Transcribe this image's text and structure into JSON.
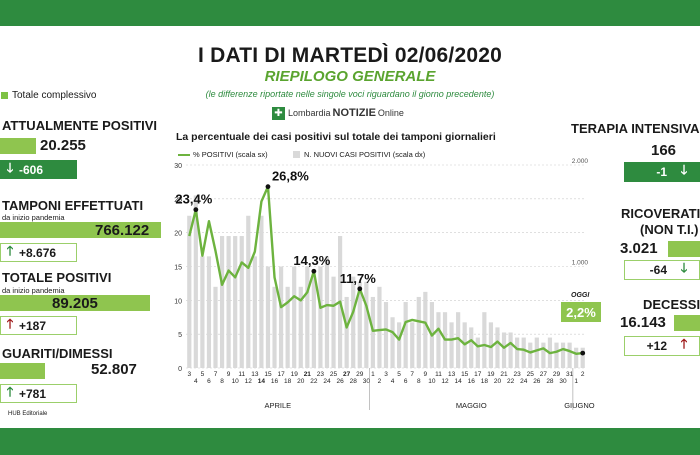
{
  "header": {
    "title": "I DATI DI MARTEDÌ 02/06/2020",
    "subtitle": "RIEPILOGO GENERALE",
    "note": "(le differenze riportate nelle singole voci riguardano il giorno precedente)",
    "logo_region": "Lombardia",
    "logo_brand": "NOTIZIE",
    "logo_suffix": "Online"
  },
  "legend_total": "Totale complessivo",
  "left": {
    "attualmente": {
      "label": "ATTUALMENTE POSITIVI",
      "value": "20.255",
      "delta": "-606"
    },
    "tamponi": {
      "label": "TAMPONI EFFETTUATI",
      "sub": "da inizio pandemia",
      "value": "766.122",
      "delta": "+8.676"
    },
    "totale": {
      "label": "TOTALE POSITIVI",
      "sub": "da inizio pandemia",
      "value": "89.205",
      "delta": "+187"
    },
    "guariti": {
      "label": "GUARITI/DIMESSI",
      "value": "52.807",
      "delta": "+781"
    }
  },
  "right": {
    "terapia": {
      "label": "TERAPIA INTENSIVA",
      "value": "166",
      "delta": "-1"
    },
    "ricoverati": {
      "label1": "RICOVERATI",
      "label2": "(NON T.I.)",
      "value": "3.021",
      "delta": "-64"
    },
    "decessi": {
      "label": "DECESSI",
      "value": "16.143",
      "delta": "+12"
    }
  },
  "footer": "HUB Editoriale",
  "colors": {
    "green_dark": "#2e8b3f",
    "green_light": "#8fc54f",
    "red": "#a01c1c",
    "bar": "#d9d9d9"
  },
  "oggi": {
    "label": "OGGI",
    "value": "2,2%"
  },
  "chart_data": {
    "type": "bar+line",
    "title": "La percentuale dei casi positivi sul totale dei tamponi giornalieri",
    "legend": [
      "% POSITIVI (scala sx)",
      "N. NUOVI CASI POSITIVI (scala dx)"
    ],
    "left_ticks": [
      "0",
      "5",
      "10",
      "15",
      "20",
      "25",
      "30"
    ],
    "right_ticks": [
      "1.000",
      "2.000"
    ],
    "ylim_left": [
      0,
      30
    ],
    "ylim_right": [
      0,
      2000
    ],
    "x_labels": [
      "3",
      "4",
      "5",
      "6",
      "7",
      "8",
      "9",
      "10",
      "11",
      "12",
      "13",
      "14",
      "15",
      "16",
      "17",
      "18",
      "19",
      "20",
      "21",
      "22",
      "23",
      "24",
      "25",
      "26",
      "27",
      "28",
      "29",
      "30",
      "1",
      "2",
      "3",
      "4",
      "5",
      "6",
      "7",
      "8",
      "9",
      "10",
      "11",
      "12",
      "13",
      "14",
      "15",
      "16",
      "17",
      "18",
      "19",
      "20",
      "21",
      "22",
      "23",
      "24",
      "25",
      "26",
      "27",
      "28",
      "29",
      "30",
      "31",
      "1",
      "2"
    ],
    "bold_labels": [
      "14",
      "21",
      "27"
    ],
    "month_labels": [
      "APRILE",
      "MAGGIO",
      "GIUGNO"
    ],
    "bars": [
      1500,
      1700,
      1100,
      1100,
      800,
      1300,
      1300,
      1300,
      1300,
      1500,
      1100,
      1500,
      1000,
      800,
      1000,
      800,
      1000,
      800,
      1000,
      900,
      1000,
      1100,
      900,
      1300,
      700,
      900,
      850,
      850,
      700,
      800,
      650,
      500,
      450,
      650,
      450,
      700,
      750,
      650,
      550,
      550,
      450,
      550,
      450,
      400,
      300,
      550,
      450,
      400,
      350,
      350,
      300,
      300,
      250,
      300,
      250,
      300,
      250,
      250,
      250,
      200,
      200
    ],
    "percent": [
      19.5,
      23.4,
      16.6,
      21.7,
      17.3,
      12.3,
      14.4,
      13.4,
      15.6,
      14.8,
      17.2,
      24.6,
      26.8,
      13.4,
      9.0,
      9.7,
      10.6,
      10.0,
      11.2,
      14.3,
      8.9,
      9.3,
      9.2,
      9.8,
      6.0,
      8.3,
      11.7,
      9.2,
      5.5,
      5.6,
      5.7,
      5.3,
      4.2,
      6.8,
      7.1,
      6.9,
      6.7,
      4.8,
      5.8,
      4.2,
      4.2,
      4.4,
      3.5,
      4.1,
      3.2,
      3.4,
      3.1,
      3.9,
      3.0,
      3.7,
      2.8,
      2.7,
      2.3,
      2.6,
      2.9,
      2.2,
      2.4,
      2.8,
      2.5,
      2.1,
      2.2
    ],
    "annotations": [
      {
        "index": 1,
        "label": "23,4%"
      },
      {
        "index": 12,
        "label": "26,8%"
      },
      {
        "index": 19,
        "label": "14,3%"
      },
      {
        "index": 26,
        "label": "11,7%"
      }
    ]
  }
}
